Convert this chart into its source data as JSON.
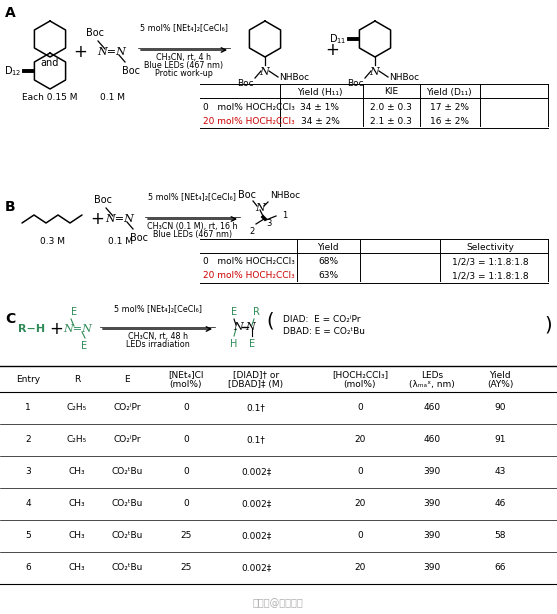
{
  "bg_color": "#ffffff",
  "section_A_label": "A",
  "section_B_label": "B",
  "section_C_label": "C",
  "reaction_A": {
    "reagent_line1": "5 mol% [NEt₄]₂[CeCl₆]",
    "reagent_line2": "CH₃CN, rt, 4 h",
    "reagent_line3": "Blue LEDs (467 nm)",
    "reagent_line4": "Protic work-up",
    "conc1": "Each 0.15 M",
    "conc2": "0.1 M",
    "table_headers": [
      "Yield (H₁₁)",
      "KIE",
      "Yield (D₁₁)"
    ],
    "table_row1_label": "0   mol% HOCH₂CCl₃",
    "table_row1_label_color": "#000000",
    "table_row2_label": "20 mol% HOCH₂CCl₃",
    "table_row2_label_color": "#cc0000",
    "table_row1_data": [
      "34 ± 1%",
      "2.0 ± 0.3",
      "17 ± 2%"
    ],
    "table_row2_data": [
      "34 ± 2%",
      "2.1 ± 0.3",
      "16 ± 2%"
    ]
  },
  "reaction_B": {
    "reagent_line1": "5 mol% [NEt₄]₂[CeCl₆]",
    "reagent_line2": "CH₃CN (0.1 M), rt, 16 h",
    "reagent_line3": "Blue LEDs (467 nm)",
    "conc1": "0.3 M",
    "conc2": "0.1 M",
    "table_headers": [
      "Yield",
      "Selectivity"
    ],
    "table_row1_label": "0   mol% HOCH₂CCl₃",
    "table_row1_label_color": "#000000",
    "table_row2_label": "20 mol% HOCH₂CCl₃",
    "table_row2_label_color": "#cc0000",
    "table_row1_data": [
      "68%",
      "1/2/3 = 1:1.8:1.8"
    ],
    "table_row2_data": [
      "63%",
      "1/2/3 = 1:1.8:1.8"
    ]
  },
  "reaction_C": {
    "reagent_line1": "5 mol% [NEt₄]₂[CeCl₆]",
    "reagent_line2": "CH₃CN, rt, 48 h",
    "reagent_line3": "LEDs irradiation",
    "note_line1": "DIAD:  E = CO₂ⁱPr",
    "note_line2": "DBAD: E = CO₂ᵗBu"
  },
  "table_C_headers": [
    "Entry",
    "R",
    "E",
    "[NEt₄]Cl\n(mol%)",
    "[DIAD]† or\n[DBAD]‡ (M)",
    "[HOCH₂CCl₃]\n(mol%)",
    "LEDs\n(λₘₐˣ, nm)",
    "Yield\n(AY%)"
  ],
  "table_C_rows": [
    [
      "1",
      "C₂H₅",
      "CO₂ⁱPr",
      "0",
      "0.1†",
      "0",
      "460",
      "90"
    ],
    [
      "2",
      "C₂H₅",
      "CO₂ⁱPr",
      "0",
      "0.1†",
      "20",
      "460",
      "91"
    ],
    [
      "3",
      "CH₃",
      "CO₂ᵗBu",
      "0",
      "0.002‡",
      "0",
      "390",
      "43"
    ],
    [
      "4",
      "CH₃",
      "CO₂ᵗBu",
      "0",
      "0.002‡",
      "20",
      "390",
      "46"
    ],
    [
      "5",
      "CH₃",
      "CO₂ᵗBu",
      "25",
      "0.002‡",
      "0",
      "390",
      "58"
    ],
    [
      "6",
      "CH₃",
      "CO₂ᵗBu",
      "25",
      "0.002‡",
      "20",
      "390",
      "66"
    ]
  ],
  "green_color": "#2e8b57",
  "red_color": "#cc0000",
  "black_color": "#000000"
}
